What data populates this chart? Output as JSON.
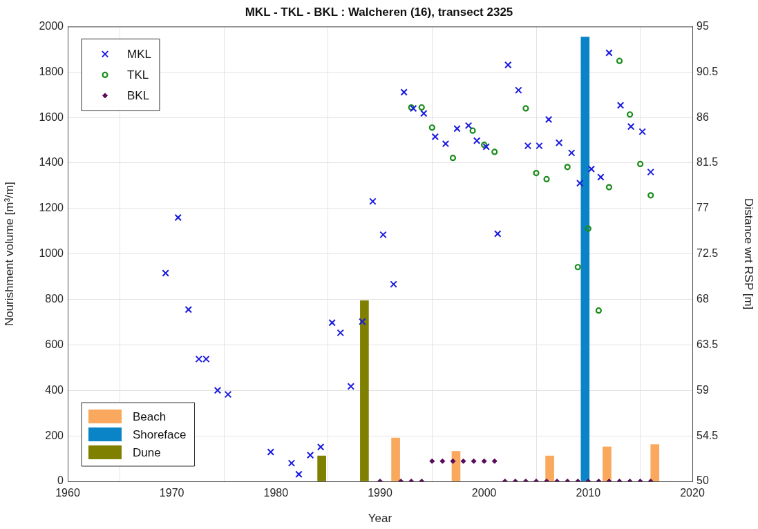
{
  "chart_data": {
    "type": "scatter",
    "title": "MKL - TKL - BKL : Walcheren (16), transect 2325",
    "xlabel": "Year",
    "ylabel": "Nourishment volume [m³/m]",
    "y2label": "Distance wrt RSP [m]",
    "xlim": [
      1960,
      2020
    ],
    "xticks": [
      1960,
      1970,
      1980,
      1990,
      2000,
      2010,
      2020
    ],
    "ylim": [
      0,
      2000
    ],
    "yticks": [
      0,
      200,
      400,
      600,
      800,
      1000,
      1200,
      1400,
      1600,
      1800,
      2000
    ],
    "y2lim": [
      50,
      95
    ],
    "y2ticks": [
      50,
      54.5,
      59,
      63.5,
      68,
      72.5,
      77,
      81.5,
      86,
      90.5,
      95
    ],
    "grid": true,
    "legend": "left",
    "series": [
      {
        "name": "Beach",
        "type": "bar",
        "color": "#f9a85d",
        "x": [
          1991.5,
          1997.3,
          2006.3,
          2011.8,
          2016.4
        ],
        "values": [
          191,
          132,
          112,
          152,
          162
        ]
      },
      {
        "name": "Shoreface",
        "type": "bar",
        "color": "#0a84c6",
        "x": [
          2009.7
        ],
        "values": [
          1954
        ]
      },
      {
        "name": "Dune",
        "type": "bar",
        "color": "#7f7f00",
        "x": [
          1984.4,
          1988.5
        ],
        "values": [
          112,
          795
        ]
      },
      {
        "name": "MKL",
        "axis": "y2",
        "marker": "cross",
        "color": "#1a1ae0",
        "x": [
          1969.4,
          1970.6,
          1971.6,
          1972.6,
          1973.3,
          1974.4,
          1975.4,
          1979.5,
          1981.5,
          1982.2,
          1983.3,
          1984.3,
          1985.4,
          1986.2,
          1987.2,
          1988.3,
          1989.3,
          1990.3,
          1991.3,
          1992.3,
          1993.2,
          1994.2,
          1995.3,
          1996.3,
          1997.4,
          1998.5,
          1999.3,
          2000.2,
          2001.3,
          2002.3,
          2003.3,
          2004.2,
          2005.3,
          2006.2,
          2007.2,
          2008.4,
          2009.2,
          2010.3,
          2011.2,
          2012.0,
          2013.1,
          2014.1,
          2015.2,
          2016.0
        ],
        "values": [
          70.6,
          76.1,
          67.0,
          62.1,
          62.1,
          59.0,
          58.6,
          52.9,
          51.8,
          50.7,
          52.6,
          53.4,
          65.7,
          64.7,
          59.4,
          65.8,
          77.7,
          74.4,
          69.5,
          88.5,
          86.9,
          86.4,
          84.1,
          83.4,
          84.9,
          85.2,
          83.7,
          83.1,
          74.5,
          91.2,
          88.7,
          83.2,
          83.2,
          85.8,
          83.5,
          82.5,
          79.5,
          80.9,
          80.1,
          92.4,
          87.2,
          85.1,
          84.6,
          80.6
        ]
      },
      {
        "name": "TKL",
        "axis": "y2",
        "marker": "circle",
        "color": "#1a8c1a",
        "x": [
          1993,
          1994,
          1995,
          1997,
          1998.9,
          2000,
          2001,
          2004,
          2005,
          2006,
          2008,
          2009,
          2010,
          2011,
          2012,
          2013,
          2014,
          2015,
          2016
        ],
        "values": [
          87.0,
          87.0,
          85.0,
          82.0,
          84.7,
          83.3,
          82.6,
          86.9,
          80.5,
          79.9,
          81.1,
          71.2,
          75.0,
          66.9,
          79.1,
          91.6,
          86.3,
          81.4,
          78.3
        ]
      },
      {
        "name": "BKL",
        "axis": "y2",
        "marker": "diamond",
        "color": "#5a0a5a",
        "x": [
          1990,
          1992,
          1993,
          1994,
          1995,
          1996,
          1997,
          1998,
          1999,
          2000,
          2001,
          2002,
          2003,
          2004,
          2005,
          2006,
          2007,
          2008,
          2009,
          2010,
          2011,
          2012,
          2013,
          2014,
          2015,
          2016
        ],
        "values": [
          50,
          50,
          50,
          50,
          52,
          52,
          52,
          52,
          52,
          52,
          52,
          50,
          50,
          50,
          50,
          50,
          50,
          50,
          50,
          50,
          50,
          50,
          50,
          50,
          50,
          50
        ]
      }
    ]
  }
}
